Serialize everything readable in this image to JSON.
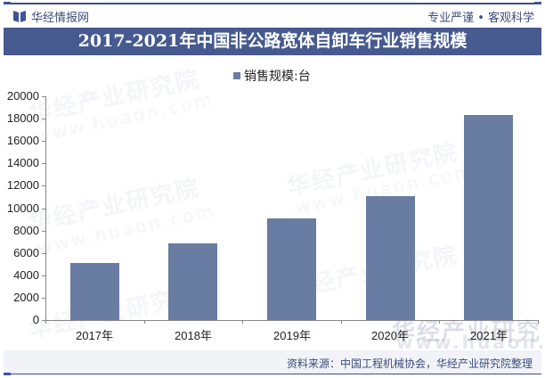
{
  "header": {
    "brand": "华经情报网",
    "slogan": "专业严谨 • 客观科学",
    "title": "2017-2021年中国非公路宽体自卸车行业销售规模"
  },
  "legend": {
    "label": "销售规模:台",
    "color": "#697da3"
  },
  "footer": {
    "source": "资料来源：中国工程机械协会，华经产业研究院整理"
  },
  "watermark": {
    "cn": "华经产业研究院",
    "url": "www.huaon.com"
  },
  "colors": {
    "accent": "#465a90",
    "bar": "#697da3",
    "footer_bg": "#f1f3f8"
  },
  "chart_data": {
    "type": "bar",
    "title": "2017-2021年中国非公路宽体自卸车行业销售规模",
    "categories": [
      "2017年",
      "2018年",
      "2019年",
      "2020年",
      "2021年"
    ],
    "series": [
      {
        "name": "销售规模:台",
        "values": [
          5100,
          6850,
          9080,
          11080,
          18330
        ]
      }
    ],
    "xlabel": "",
    "ylabel": "",
    "ylim": [
      0,
      20000
    ],
    "yticks": [
      "0",
      "2000",
      "4000",
      "6000",
      "8000",
      "10000",
      "12000",
      "14000",
      "16000",
      "18000",
      "20000"
    ],
    "grid": false,
    "legend_position": "top"
  }
}
